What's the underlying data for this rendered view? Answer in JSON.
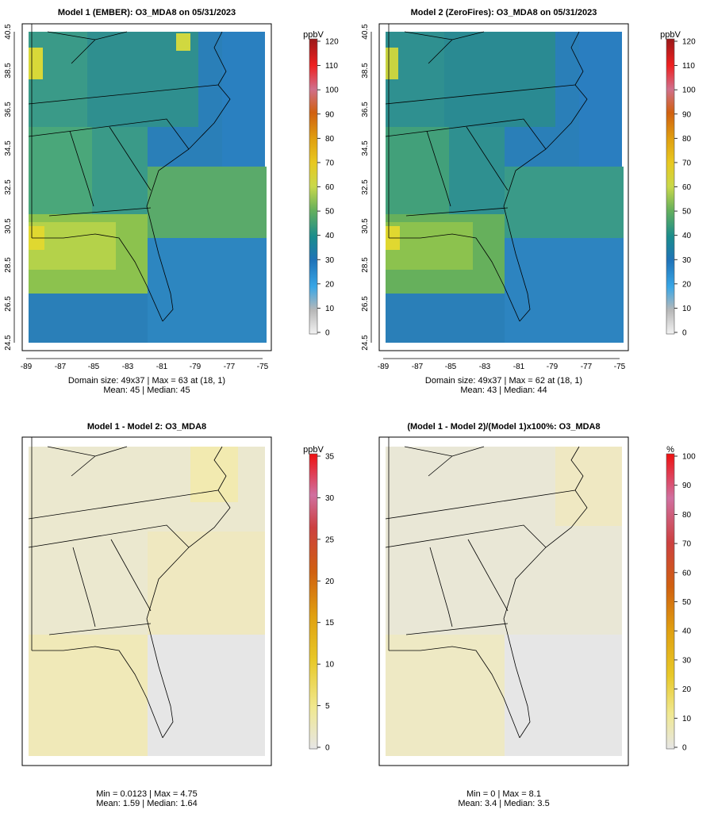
{
  "chart_data": [
    {
      "type": "heatmap",
      "title": "Model 1 (EMBER): O3_MDA8 on 05/31/2023",
      "units": "ppbV",
      "grid": [
        49,
        37
      ],
      "colorbar": {
        "min": 0,
        "max": 120,
        "ticks": [
          "0",
          "10",
          "20",
          "30",
          "40",
          "50",
          "60",
          "70",
          "80",
          "90",
          "100",
          "110",
          "120"
        ]
      },
      "x_ticks": [
        "-89",
        "-87",
        "-85",
        "-83",
        "-81",
        "-79",
        "-77",
        "-75"
      ],
      "y_ticks": [
        "24.5",
        "26.5",
        "28.5",
        "30.5",
        "32.5",
        "34.5",
        "36.5",
        "38.5",
        "40.5"
      ],
      "stats_line1": "Domain size: 49x37 | Max = 63 at (18, 1)",
      "stats_line2": "Mean: 45 |  Median: 45",
      "mean": 45,
      "median": 45,
      "max": 63
    },
    {
      "type": "heatmap",
      "title": "Model 2 (ZeroFires): O3_MDA8 on 05/31/2023",
      "units": "ppbV",
      "grid": [
        49,
        37
      ],
      "colorbar": {
        "min": 0,
        "max": 120,
        "ticks": [
          "0",
          "10",
          "20",
          "30",
          "40",
          "50",
          "60",
          "70",
          "80",
          "90",
          "100",
          "110",
          "120"
        ]
      },
      "x_ticks": [
        "-89",
        "-87",
        "-85",
        "-83",
        "-81",
        "-79",
        "-77",
        "-75"
      ],
      "y_ticks": [
        "24.5",
        "26.5",
        "28.5",
        "30.5",
        "32.5",
        "34.5",
        "36.5",
        "38.5",
        "40.5"
      ],
      "stats_line1": "Domain size: 49x37 | Max = 62 at (18, 1)",
      "stats_line2": "Mean: 43 |  Median: 44",
      "mean": 43,
      "median": 44,
      "max": 62
    },
    {
      "type": "heatmap",
      "title": "Model 1 - Model 2: O3_MDA8",
      "units": "ppbV",
      "colorbar": {
        "min": 0,
        "max": 35,
        "ticks": [
          "0",
          "5",
          "10",
          "15",
          "20",
          "25",
          "30",
          "35"
        ]
      },
      "stats_line1": "Min = 0.0123 | Max = 4.75",
      "stats_line2": "Mean: 1.59 |  Median: 1.64",
      "min": 0.0123,
      "max": 4.75,
      "mean": 1.59,
      "median": 1.64
    },
    {
      "type": "heatmap",
      "title": "(Model 1 - Model 2)/(Model 1)x100%: O3_MDA8",
      "units": "%",
      "colorbar": {
        "min": 0,
        "max": 100,
        "ticks": [
          "0",
          "10",
          "20",
          "30",
          "40",
          "50",
          "60",
          "70",
          "80",
          "90",
          "100"
        ]
      },
      "stats_line1": "Min = 0 | Max = 8.1",
      "stats_line2": "Mean: 3.4 |  Median: 3.5",
      "min": 0,
      "max": 8.1,
      "mean": 3.4,
      "median": 3.5
    }
  ]
}
